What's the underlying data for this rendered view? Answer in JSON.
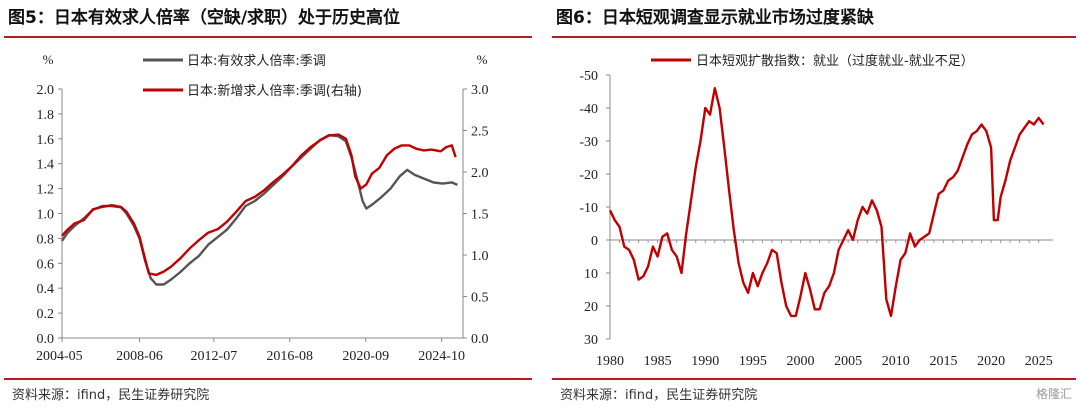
{
  "charts": [
    {
      "title": "图5：日本有效求人倍率（空缺/求职）处于历史高位",
      "source": "资料来源：ifind，民生证券研究院",
      "chart_data": {
        "type": "line",
        "left_unit": "%",
        "right_unit": "%",
        "ylim_left": [
          0,
          2.0
        ],
        "ylim_right": [
          0,
          3.0
        ],
        "yticks_left": [
          "0.0",
          "0.2",
          "0.4",
          "0.6",
          "0.8",
          "1.0",
          "1.2",
          "1.4",
          "1.6",
          "1.8",
          "2.0"
        ],
        "yticks_right": [
          "0.0",
          "0.5",
          "1.0",
          "1.5",
          "2.0",
          "2.5",
          "3.0"
        ],
        "xlim": [
          2004.33,
          2025.9
        ],
        "xticks": [
          {
            "pos": 2004.33,
            "label": "2004-05"
          },
          {
            "pos": 2008.5,
            "label": "2008-06"
          },
          {
            "pos": 2012.5,
            "label": "2012-07"
          },
          {
            "pos": 2016.58,
            "label": "2016-08"
          },
          {
            "pos": 2020.67,
            "label": "2020-09"
          },
          {
            "pos": 2024.75,
            "label": "2024-10"
          }
        ],
        "series": [
          {
            "name": "日本:有效求人倍率:季调",
            "color": "#555555",
            "axis": "left",
            "points": [
              [
                2004.33,
                0.78
              ],
              [
                2004.6,
                0.84
              ],
              [
                2005.0,
                0.9
              ],
              [
                2005.5,
                0.96
              ],
              [
                2006.0,
                1.03
              ],
              [
                2006.5,
                1.06
              ],
              [
                2007.0,
                1.06
              ],
              [
                2007.5,
                1.05
              ],
              [
                2007.8,
                1.0
              ],
              [
                2008.2,
                0.9
              ],
              [
                2008.5,
                0.8
              ],
              [
                2008.8,
                0.62
              ],
              [
                2009.1,
                0.48
              ],
              [
                2009.4,
                0.43
              ],
              [
                2009.8,
                0.43
              ],
              [
                2010.2,
                0.47
              ],
              [
                2010.7,
                0.53
              ],
              [
                2011.2,
                0.6
              ],
              [
                2011.7,
                0.66
              ],
              [
                2012.2,
                0.75
              ],
              [
                2012.7,
                0.81
              ],
              [
                2013.2,
                0.87
              ],
              [
                2013.7,
                0.96
              ],
              [
                2014.2,
                1.06
              ],
              [
                2014.7,
                1.1
              ],
              [
                2015.2,
                1.16
              ],
              [
                2015.7,
                1.23
              ],
              [
                2016.2,
                1.3
              ],
              [
                2016.7,
                1.38
              ],
              [
                2017.2,
                1.45
              ],
              [
                2017.7,
                1.52
              ],
              [
                2018.2,
                1.59
              ],
              [
                2018.7,
                1.63
              ],
              [
                2019.2,
                1.62
              ],
              [
                2019.6,
                1.58
              ],
              [
                2019.9,
                1.45
              ],
              [
                2020.2,
                1.28
              ],
              [
                2020.5,
                1.1
              ],
              [
                2020.7,
                1.04
              ],
              [
                2021.0,
                1.07
              ],
              [
                2021.5,
                1.13
              ],
              [
                2022.0,
                1.2
              ],
              [
                2022.5,
                1.3
              ],
              [
                2022.9,
                1.35
              ],
              [
                2023.3,
                1.31
              ],
              [
                2023.8,
                1.28
              ],
              [
                2024.3,
                1.25
              ],
              [
                2024.8,
                1.24
              ],
              [
                2025.3,
                1.25
              ],
              [
                2025.6,
                1.23
              ]
            ]
          },
          {
            "name": "日本:新增求人倍率:季调(右轴)",
            "color": "#c00000",
            "axis": "right",
            "points": [
              [
                2004.33,
                1.23
              ],
              [
                2004.6,
                1.3
              ],
              [
                2005.0,
                1.38
              ],
              [
                2005.5,
                1.42
              ],
              [
                2006.0,
                1.55
              ],
              [
                2006.5,
                1.58
              ],
              [
                2007.0,
                1.6
              ],
              [
                2007.5,
                1.58
              ],
              [
                2007.8,
                1.52
              ],
              [
                2008.2,
                1.38
              ],
              [
                2008.5,
                1.22
              ],
              [
                2008.8,
                0.95
              ],
              [
                2009.0,
                0.78
              ],
              [
                2009.4,
                0.76
              ],
              [
                2009.8,
                0.8
              ],
              [
                2010.2,
                0.86
              ],
              [
                2010.7,
                0.96
              ],
              [
                2011.2,
                1.08
              ],
              [
                2011.7,
                1.18
              ],
              [
                2012.2,
                1.27
              ],
              [
                2012.7,
                1.31
              ],
              [
                2013.2,
                1.4
              ],
              [
                2013.7,
                1.52
              ],
              [
                2014.2,
                1.65
              ],
              [
                2014.7,
                1.7
              ],
              [
                2015.2,
                1.78
              ],
              [
                2015.7,
                1.88
              ],
              [
                2016.2,
                1.97
              ],
              [
                2016.7,
                2.07
              ],
              [
                2017.2,
                2.2
              ],
              [
                2017.7,
                2.3
              ],
              [
                2018.2,
                2.38
              ],
              [
                2018.7,
                2.44
              ],
              [
                2019.2,
                2.45
              ],
              [
                2019.6,
                2.4
              ],
              [
                2019.9,
                2.2
              ],
              [
                2020.1,
                1.95
              ],
              [
                2020.4,
                1.8
              ],
              [
                2020.7,
                1.85
              ],
              [
                2021.0,
                1.98
              ],
              [
                2021.4,
                2.05
              ],
              [
                2021.8,
                2.2
              ],
              [
                2022.2,
                2.28
              ],
              [
                2022.6,
                2.32
              ],
              [
                2023.0,
                2.32
              ],
              [
                2023.4,
                2.28
              ],
              [
                2023.8,
                2.26
              ],
              [
                2024.2,
                2.27
              ],
              [
                2024.7,
                2.25
              ],
              [
                2025.0,
                2.3
              ],
              [
                2025.3,
                2.32
              ],
              [
                2025.5,
                2.18
              ]
            ]
          }
        ]
      }
    },
    {
      "title": "图6：日本短观调查显示就业市场过度紧缺",
      "source": "资料来源：ifind，民生证券研究院",
      "watermark": "格隆汇",
      "chart_data": {
        "type": "line",
        "ylim": [
          30,
          -50
        ],
        "yticks": [
          "-50",
          "-40",
          "-30",
          "-20",
          "-10",
          "0",
          "10",
          "20",
          "30"
        ],
        "xlim": [
          1980,
          2026.5
        ],
        "xticks": [
          "1980",
          "1985",
          "1990",
          "1995",
          "2000",
          "2005",
          "2010",
          "2015",
          "2020",
          "2025"
        ],
        "series": [
          {
            "name": "日本短观扩散指数：就业（过度就业-就业不足）",
            "color": "#c00000",
            "points": [
              [
                1980.0,
                -9
              ],
              [
                1980.5,
                -6
              ],
              [
                1981.0,
                -4
              ],
              [
                1981.5,
                2
              ],
              [
                1982.0,
                3
              ],
              [
                1982.5,
                6
              ],
              [
                1983.0,
                12
              ],
              [
                1983.5,
                11
              ],
              [
                1984.0,
                8
              ],
              [
                1984.5,
                2
              ],
              [
                1985.0,
                5
              ],
              [
                1985.5,
                -1
              ],
              [
                1986.0,
                -2
              ],
              [
                1986.5,
                3
              ],
              [
                1987.0,
                5
              ],
              [
                1987.5,
                10
              ],
              [
                1988.0,
                -2
              ],
              [
                1988.5,
                -12
              ],
              [
                1989.0,
                -22
              ],
              [
                1989.5,
                -30
              ],
              [
                1990.0,
                -40
              ],
              [
                1990.5,
                -38
              ],
              [
                1991.0,
                -46
              ],
              [
                1991.5,
                -40
              ],
              [
                1992.0,
                -28
              ],
              [
                1992.5,
                -15
              ],
              [
                1993.0,
                -3
              ],
              [
                1993.5,
                7
              ],
              [
                1994.0,
                13
              ],
              [
                1994.5,
                16
              ],
              [
                1995.0,
                10
              ],
              [
                1995.5,
                14
              ],
              [
                1996.0,
                10
              ],
              [
                1996.5,
                7
              ],
              [
                1997.0,
                3
              ],
              [
                1997.5,
                4
              ],
              [
                1998.0,
                13
              ],
              [
                1998.5,
                20
              ],
              [
                1999.0,
                23
              ],
              [
                1999.5,
                23
              ],
              [
                2000.0,
                17
              ],
              [
                2000.5,
                10
              ],
              [
                2001.0,
                15
              ],
              [
                2001.5,
                21
              ],
              [
                2002.0,
                21
              ],
              [
                2002.5,
                16
              ],
              [
                2003.0,
                14
              ],
              [
                2003.5,
                10
              ],
              [
                2004.0,
                3
              ],
              [
                2004.5,
                0
              ],
              [
                2005.0,
                -3
              ],
              [
                2005.5,
                0
              ],
              [
                2006.0,
                -6
              ],
              [
                2006.5,
                -10
              ],
              [
                2007.0,
                -8
              ],
              [
                2007.5,
                -12
              ],
              [
                2008.0,
                -9
              ],
              [
                2008.5,
                -4
              ],
              [
                2009.0,
                18
              ],
              [
                2009.5,
                23
              ],
              [
                2010.0,
                14
              ],
              [
                2010.5,
                6
              ],
              [
                2011.0,
                4
              ],
              [
                2011.5,
                -2
              ],
              [
                2012.0,
                2
              ],
              [
                2012.5,
                0
              ],
              [
                2013.0,
                -1
              ],
              [
                2013.5,
                -2
              ],
              [
                2014.0,
                -8
              ],
              [
                2014.5,
                -14
              ],
              [
                2015.0,
                -15
              ],
              [
                2015.5,
                -18
              ],
              [
                2016.0,
                -19
              ],
              [
                2016.5,
                -21
              ],
              [
                2017.0,
                -25
              ],
              [
                2017.5,
                -29
              ],
              [
                2018.0,
                -32
              ],
              [
                2018.5,
                -33
              ],
              [
                2019.0,
                -35
              ],
              [
                2019.5,
                -33
              ],
              [
                2020.0,
                -28
              ],
              [
                2020.3,
                -6
              ],
              [
                2020.7,
                -6
              ],
              [
                2021.0,
                -13
              ],
              [
                2021.5,
                -18
              ],
              [
                2022.0,
                -24
              ],
              [
                2022.5,
                -28
              ],
              [
                2023.0,
                -32
              ],
              [
                2023.5,
                -34
              ],
              [
                2024.0,
                -36
              ],
              [
                2024.5,
                -35
              ],
              [
                2025.0,
                -37
              ],
              [
                2025.5,
                -35
              ]
            ]
          }
        ]
      }
    }
  ]
}
